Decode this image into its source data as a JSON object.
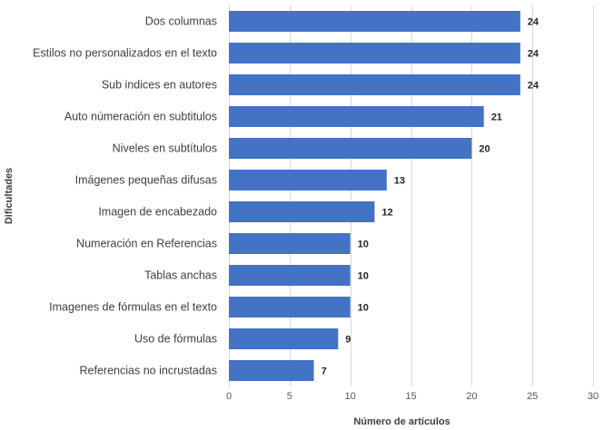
{
  "chart_data": {
    "type": "bar",
    "orientation": "horizontal",
    "categories": [
      "Dos columnas",
      "Estilos no personalizados en el texto",
      "Sub indices en autores",
      "Auto númeración en subtitulos",
      "Niveles en  subtítulos",
      "Imágenes pequeñas difusas",
      "Imagen de encabezado",
      "Numeración en Referencias",
      "Tablas anchas",
      "Imagenes de fórmulas en el texto",
      "Uso de fórmulas",
      "Referencias no incrustadas"
    ],
    "values": [
      24,
      24,
      24,
      21,
      20,
      13,
      12,
      10,
      10,
      10,
      9,
      7
    ],
    "xlabel": "Número de artículos",
    "ylabel": "Dificultades",
    "xlim": [
      0,
      30
    ],
    "xticks": [
      0,
      5,
      10,
      15,
      20,
      25,
      30
    ],
    "grid": "vertical",
    "bar_color": "#4472c4",
    "data_labels": true
  }
}
